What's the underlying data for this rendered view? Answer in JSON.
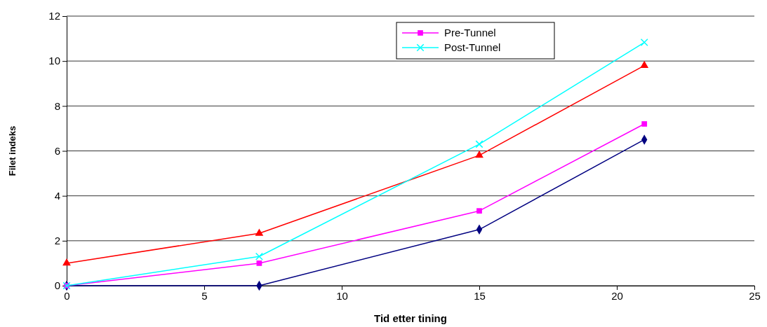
{
  "chart_data": {
    "type": "line",
    "xlabel": "Tid etter tining",
    "ylabel": "Filet indeks",
    "xlim": [
      0,
      25
    ],
    "xticks": [
      0,
      5,
      10,
      15,
      20,
      25
    ],
    "ylim": [
      0,
      12
    ],
    "yticks": [
      0,
      2,
      4,
      6,
      8,
      10,
      12
    ],
    "grid": "y",
    "legend": "top",
    "x": [
      0,
      7,
      15,
      21
    ],
    "series": [
      {
        "color": "#000080",
        "marker": "diamond",
        "values": [
          0,
          0,
          2.5,
          6.5
        ]
      },
      {
        "name": "Pre-Tunnel",
        "color": "#ff00ff",
        "marker": "square",
        "values": [
          0,
          1,
          3.33,
          7.2
        ]
      },
      {
        "color": "#ff0000",
        "marker": "triangle",
        "values": [
          1,
          2.33,
          5.8,
          9.8
        ]
      },
      {
        "name": "Post-Tunnel",
        "color": "#00ffff",
        "marker": "cross",
        "values": [
          0,
          1.3,
          6.3,
          10.83
        ]
      }
    ]
  }
}
